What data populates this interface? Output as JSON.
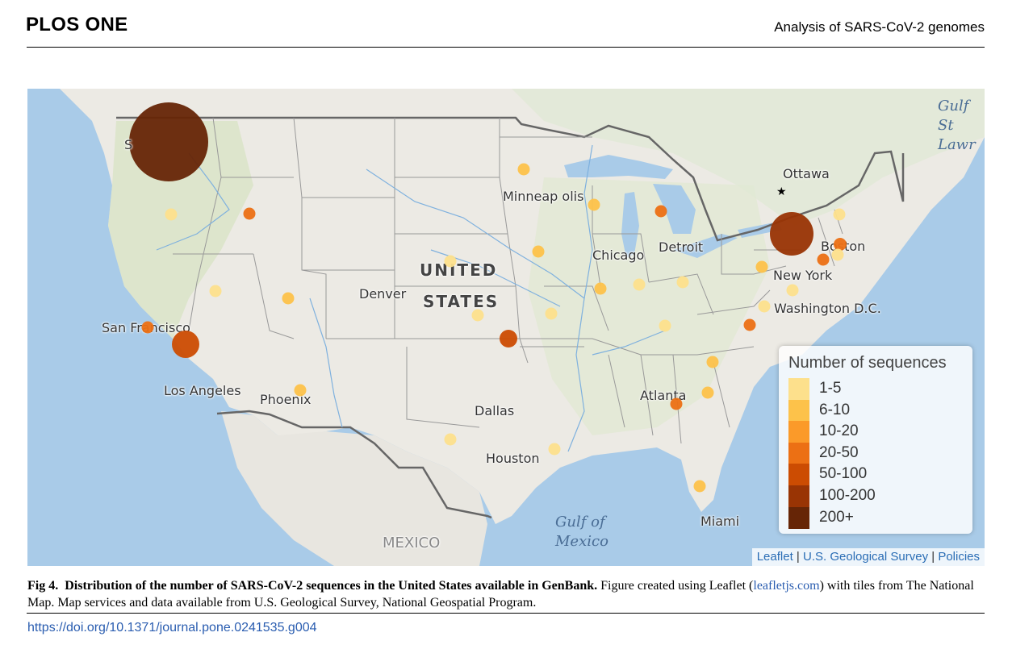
{
  "header": {
    "journal": "PLOS ONE",
    "running_title": "Analysis of SARS-CoV-2 genomes"
  },
  "map": {
    "labels": {
      "ottawa": "Ottawa",
      "minneapolis": "Minneap olis",
      "chicago": "Chicago",
      "detroit": "Detroit",
      "boston": "Boston",
      "new_york": "New York",
      "washington": "Washington D.C.",
      "united": "UNITED",
      "states": "STATES",
      "denver": "Denver",
      "san_francisco": "San Francisco",
      "los_angeles": "Los Angeles",
      "phoenix": "Phoenix",
      "dallas": "Dallas",
      "houston": "Houston",
      "atlanta": "Atlanta",
      "miami": "Miami",
      "mexico": "MEXICO",
      "gulf_mexico": "Gulf of Mexico",
      "gulf_st": "Gulf St Lawr",
      "seattle_s": "S"
    },
    "legend": {
      "title": "Number of sequences",
      "items": [
        {
          "label": "1-5",
          "color": "#fde08c"
        },
        {
          "label": "6-10",
          "color": "#fdc24a"
        },
        {
          "label": "10-20",
          "color": "#fb9a29"
        },
        {
          "label": "20-50",
          "color": "#ec7014"
        },
        {
          "label": "50-100",
          "color": "#cc4c02"
        },
        {
          "label": "100-200",
          "color": "#993404"
        },
        {
          "label": "200+",
          "color": "#662506"
        }
      ]
    },
    "attribution": {
      "leaflet": "Leaflet",
      "sep1": " | ",
      "usgs": "U.S. Geological Survey",
      "sep2": " | ",
      "policies": "Policies"
    },
    "bubbles": [
      {
        "place": "Seattle",
        "category": "200+"
      },
      {
        "place": "New York",
        "category": "100-200"
      },
      {
        "place": "Southern California",
        "category": "50-100"
      },
      {
        "place": "Kansas",
        "category": "50-100"
      },
      {
        "place": "Boston",
        "category": "20-50"
      },
      {
        "place": "New Jersey",
        "category": "20-50"
      },
      {
        "place": "Maryland",
        "category": "20-50"
      },
      {
        "place": "Michigan",
        "category": "20-50"
      },
      {
        "place": "Idaho",
        "category": "20-50"
      },
      {
        "place": "San Francisco",
        "category": "20-50"
      },
      {
        "place": "Georgia",
        "category": "20-50"
      }
    ]
  },
  "caption": {
    "label": "Fig 4.",
    "title": "Distribution of the number of SARS-CoV-2 sequences in the United States available in GenBank.",
    "text_1": "Figure created using Leaflet (",
    "link": "leafletjs.com",
    "text_2": ") with tiles from The National Map. Map services and data available from U.S. Geological Survey, National Geospatial Program."
  },
  "doi": "https://doi.org/10.1371/journal.pone.0241535.g004"
}
